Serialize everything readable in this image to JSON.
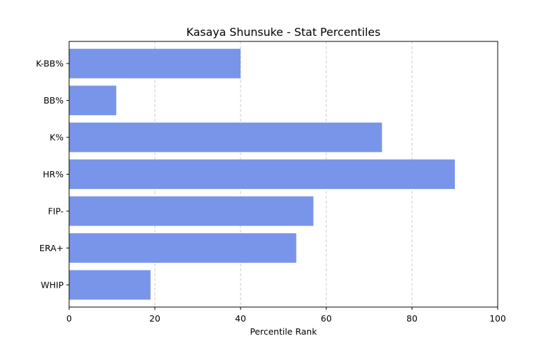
{
  "chart_data": {
    "type": "bar",
    "orientation": "horizontal",
    "title": "Kasaya Shunsuke - Stat Percentiles",
    "xlabel": "Percentile Rank",
    "ylabel": "",
    "categories": [
      "WHIP",
      "ERA+",
      "FIP-",
      "HR%",
      "K%",
      "BB%",
      "K-BB%"
    ],
    "values": [
      19,
      53,
      57,
      90,
      73,
      11,
      40
    ],
    "xlim": [
      0,
      100
    ],
    "xticks": [
      0,
      20,
      40,
      60,
      80,
      100
    ],
    "grid": "x-dashed",
    "bar_color": "#7895EA",
    "grid_color": "#C8C8C8"
  }
}
